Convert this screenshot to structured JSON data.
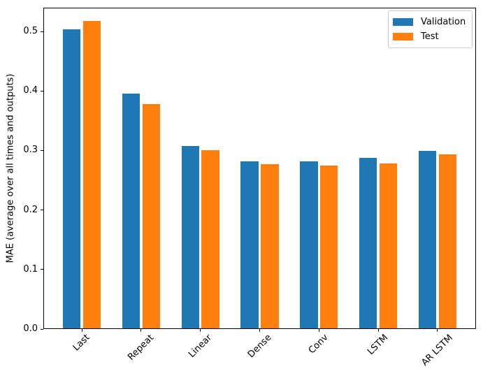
{
  "chart_data": {
    "type": "bar",
    "title": "",
    "xlabel": "",
    "ylabel": "MAE (average over all times and outputs)",
    "categories": [
      "Last",
      "Repeat",
      "Linear",
      "Dense",
      "Conv",
      "LSTM",
      "AR LSTM"
    ],
    "series": [
      {
        "name": "Validation",
        "color": "#1f77b4",
        "values": [
          0.502,
          0.395,
          0.306,
          0.281,
          0.28,
          0.286,
          0.298
        ]
      },
      {
        "name": "Test",
        "color": "#ff7f0e",
        "values": [
          0.516,
          0.377,
          0.299,
          0.276,
          0.274,
          0.277,
          0.292
        ]
      }
    ],
    "yticks": [
      0.0,
      0.1,
      0.2,
      0.3,
      0.4,
      0.5
    ],
    "ytick_labels": [
      "0.0",
      "0.1",
      "0.2",
      "0.3",
      "0.4",
      "0.5"
    ],
    "ylim": [
      0,
      0.54
    ],
    "xtick_rotation": 45,
    "grid": false,
    "legend_position": "upper right",
    "bar_width_units": 0.3,
    "bar_offset_units": 0.17
  }
}
